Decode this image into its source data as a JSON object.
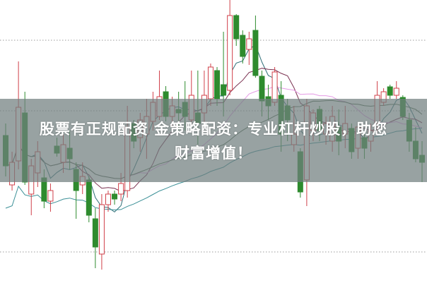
{
  "chart_data": {
    "type": "candlestick",
    "title": "",
    "xlabel": "",
    "ylabel": "",
    "ylim": [
      0,
      400
    ],
    "grid": "dotted horizontal",
    "gridlines": [
      343,
      243,
      43
    ],
    "up_color": "#d0404a",
    "down_color": "#2e8b2e",
    "ohlc_format": [
      "open",
      "high",
      "low",
      "close"
    ],
    "candles": [
      [
        208,
        225,
        150,
        165
      ],
      [
        138,
        185,
        130,
        170
      ],
      [
        172,
        313,
        160,
        248
      ],
      [
        240,
        270,
        138,
        142
      ],
      [
        125,
        175,
        95,
        165
      ],
      [
        155,
        200,
        135,
        185
      ],
      [
        148,
        160,
        105,
        115
      ],
      [
        115,
        140,
        100,
        130
      ],
      [
        193,
        205,
        178,
        183
      ],
      [
        170,
        210,
        155,
        195
      ],
      [
        190,
        215,
        160,
        175
      ],
      [
        160,
        170,
        90,
        130
      ],
      [
        138,
        170,
        125,
        150
      ],
      [
        145,
        150,
        85,
        95
      ],
      [
        90,
        105,
        20,
        50
      ],
      [
        40,
        125,
        18,
        110
      ],
      [
        110,
        130,
        100,
        125
      ],
      [
        125,
        130,
        110,
        118
      ],
      [
        125,
        155,
        115,
        140
      ],
      [
        130,
        250,
        120,
        220
      ],
      [
        225,
        230,
        190,
        200
      ],
      [
        205,
        240,
        185,
        230
      ],
      [
        210,
        260,
        175,
        235
      ],
      [
        228,
        270,
        215,
        255
      ],
      [
        235,
        300,
        230,
        263
      ],
      [
        270,
        278,
        228,
        235
      ],
      [
        235,
        263,
        220,
        250
      ],
      [
        245,
        270,
        215,
        240
      ],
      [
        255,
        285,
        215,
        235
      ],
      [
        230,
        300,
        220,
        265
      ],
      [
        240,
        300,
        195,
        225
      ],
      [
        240,
        300,
        220,
        265
      ],
      [
        260,
        310,
        250,
        305
      ],
      [
        300,
        305,
        250,
        260
      ],
      [
        280,
        355,
        235,
        265
      ],
      [
        272,
        400,
        265,
        378
      ],
      [
        378,
        380,
        335,
        345
      ],
      [
        350,
        357,
        310,
        320
      ],
      [
        330,
        355,
        308,
        345
      ],
      [
        357,
        378,
        290,
        293
      ],
      [
        292,
        300,
        235,
        257
      ],
      [
        263,
        280,
        230,
        250
      ],
      [
        255,
        305,
        250,
        298
      ],
      [
        265,
        285,
        185,
        210
      ],
      [
        250,
        260,
        200,
        230
      ],
      [
        195,
        250,
        185,
        210
      ],
      [
        185,
        190,
        120,
        128
      ],
      [
        145,
        260,
        108,
        250
      ],
      [
        215,
        245,
        200,
        240
      ],
      [
        245,
        250,
        200,
        215
      ],
      [
        210,
        235,
        195,
        225
      ],
      [
        200,
        250,
        185,
        235
      ],
      [
        220,
        245,
        180,
        200
      ],
      [
        210,
        250,
        190,
        225
      ],
      [
        218,
        225,
        175,
        185
      ],
      [
        190,
        225,
        175,
        220
      ],
      [
        205,
        210,
        175,
        190
      ],
      [
        200,
        225,
        185,
        215
      ],
      [
        225,
        285,
        210,
        265
      ],
      [
        255,
        275,
        250,
        270
      ],
      [
        277,
        280,
        260,
        265
      ],
      [
        265,
        285,
        260,
        275
      ],
      [
        262,
        265,
        230,
        235
      ],
      [
        230,
        240,
        185,
        200
      ],
      [
        200,
        220,
        170,
        175
      ],
      [
        180,
        200,
        142,
        170
      ]
    ],
    "moving_average_colors": [
      "#2f6f78",
      "#7a3050",
      "#e59ae5",
      "#4f6a4f",
      "#3a8f96"
    ]
  },
  "overlay": {
    "line1": "股票有正规配资 金策略配资：专业杠杆炒股，助您",
    "line2": "财富增值！",
    "background": "#707e7e"
  }
}
